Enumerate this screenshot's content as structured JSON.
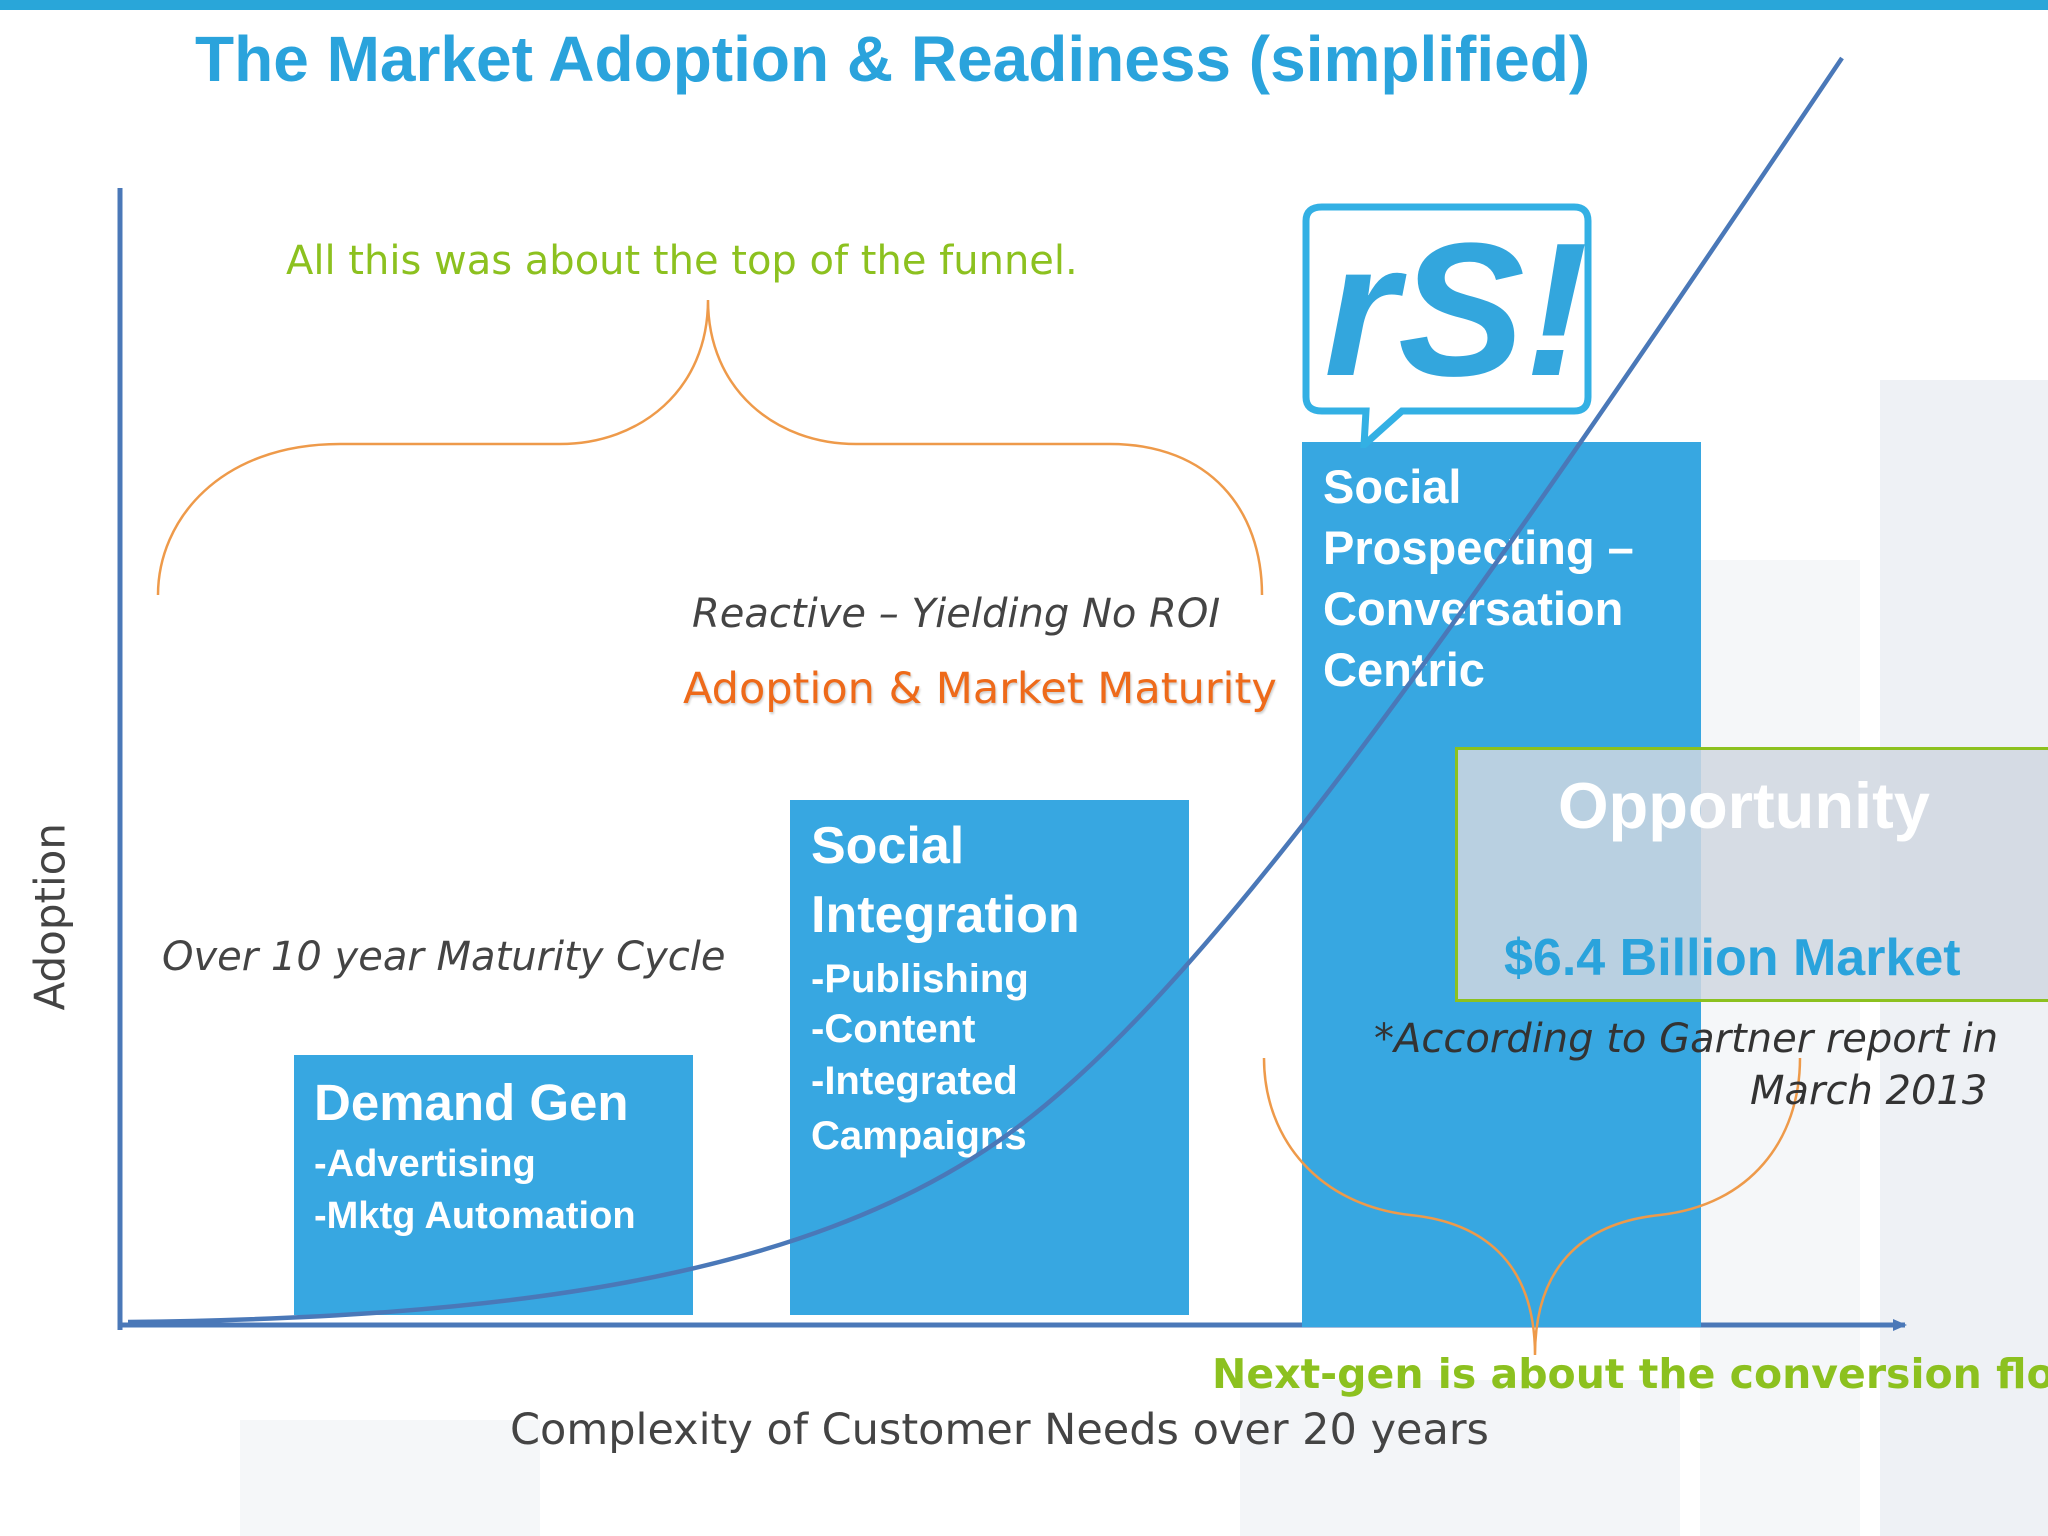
{
  "title": "The Market Adoption & Readiness (simplified)",
  "axes": {
    "y_label": "Adoption",
    "x_label": "Complexity of Customer Needs over 20 years"
  },
  "annotations": {
    "top_funnel": "All this was about the top of the funnel.",
    "reactive": "Reactive – Yielding No ROI",
    "adoption_maturity": "Adoption & Market Maturity",
    "maturity_cycle": "Over 10 year Maturity Cycle",
    "next_gen": "Next-gen is about the conversion flow!",
    "gartner_line1": "*According to Gartner report in",
    "gartner_line2": "March 2013"
  },
  "boxes": [
    {
      "heading": "Demand Gen",
      "items": [
        "-Advertising",
        "-Mktg Automation"
      ]
    },
    {
      "heading": "Social Integration",
      "items": [
        "-Publishing",
        "-Content",
        "-Integrated Campaigns"
      ]
    },
    {
      "heading": "Social Prospecting – Conversation Centric",
      "items": []
    }
  ],
  "opportunity": {
    "heading": "Opportunity",
    "value": "$6.4 Billion Market"
  },
  "logo": {
    "text": "rS!",
    "icon": "speech-bubble-logo-icon"
  },
  "colors": {
    "accent_blue": "#2aa3dc",
    "box_blue": "#37a7e1",
    "green": "#8cc11f",
    "orange": "#ee7d2a",
    "axis_blue": "#4a78b8"
  }
}
